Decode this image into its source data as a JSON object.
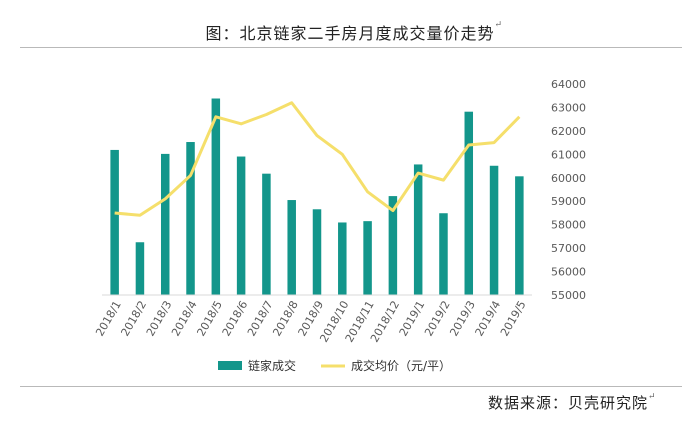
{
  "header": {
    "title": "图：北京链家二手房月度成交量价走势",
    "end_mark": "↵"
  },
  "footer": {
    "source": "数据来源：贝壳研究院",
    "end_mark": "↵"
  },
  "colors": {
    "bars": "#13968b",
    "line": "#f5df6b",
    "axis": "#d9d9d9",
    "text": "#595959"
  },
  "chart_data": {
    "type": "bar+line",
    "title": "图：北京链家二手房月度成交量价走势",
    "categories": [
      "2018/1",
      "2018/2",
      "2018/3",
      "2018/4",
      "2018/5",
      "2018/6",
      "2018/7",
      "2018/8",
      "2018/9",
      "2018/10",
      "2018/11",
      "2018/12",
      "2019/1",
      "2019/2",
      "2019/3",
      "2019/4",
      "2019/5"
    ],
    "series": [
      {
        "name": "链家成交",
        "type": "bar",
        "values": [
          11000,
          4000,
          10700,
          11600,
          14900,
          10500,
          9200,
          7200,
          6500,
          5500,
          5600,
          7500,
          9900,
          6200,
          13900,
          9800,
          9000
        ]
      },
      {
        "name": "成交均价（元/平）",
        "type": "line",
        "axis": "right",
        "values": [
          58500,
          58400,
          59100,
          60100,
          62600,
          62300,
          62700,
          63200,
          61800,
          61000,
          59400,
          58600,
          60200,
          59900,
          61400,
          61500,
          62600
        ]
      }
    ],
    "y_right": {
      "min": 55000,
      "max": 64000,
      "ticks": [
        55000,
        56000,
        57000,
        58000,
        59000,
        60000,
        61000,
        62000,
        63000,
        64000
      ]
    },
    "legend": [
      "链家成交",
      "成交均价（元/平）"
    ],
    "legend_position": "bottom",
    "grid": false
  }
}
